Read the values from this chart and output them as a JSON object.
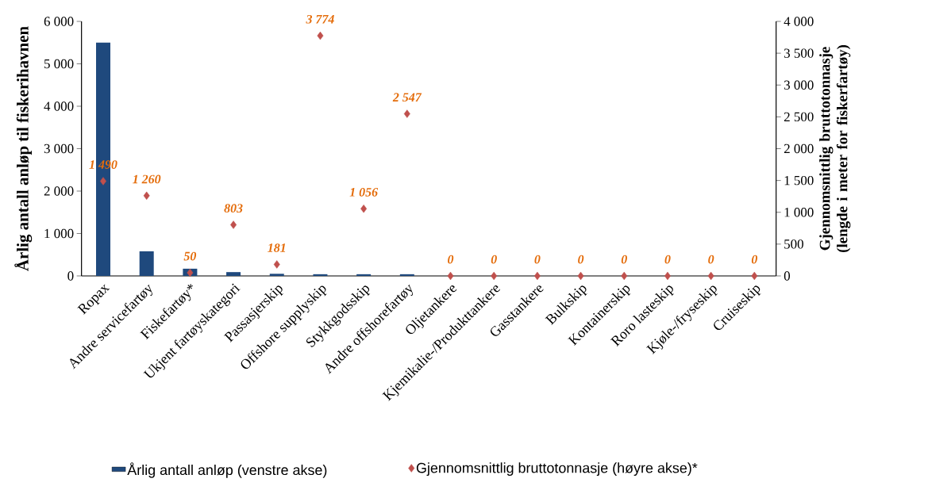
{
  "chart_data": {
    "type": "bar",
    "categories": [
      "Ropax",
      "Andre servicefartøy",
      "Fiskefartøy*",
      "Ukjent fartøyskategori",
      "Passasjerskip",
      "Offshore supplyskip",
      "Stykkgodsskip",
      "Andre offshorefartøy",
      "Oljetankere",
      "Kjemikalie-/Produkttankere",
      "Gasstankere",
      "Bulkskip",
      "Kontainerskip",
      "Roro lasteskip",
      "Kjøle-/fryseskip",
      "Cruiseskip"
    ],
    "series": [
      {
        "name": "Årlig antall anløp (venstre akse)",
        "color": "#1f497d",
        "values": [
          5500,
          580,
          170,
          90,
          50,
          40,
          40,
          40,
          0,
          0,
          0,
          0,
          0,
          0,
          0,
          0
        ]
      },
      {
        "name": "Gjennomsnittlig bruttotonnasje (høyre akse)*",
        "type": "scatter",
        "axis": "y2",
        "color": "#c0504d",
        "marker": "diamond",
        "values": [
          1490,
          1260,
          50,
          803,
          181,
          3774,
          1056,
          2547,
          0,
          0,
          0,
          0,
          0,
          0,
          0,
          0
        ],
        "value_labels": [
          "1 490",
          "1 260",
          "50",
          "803",
          "181",
          "3 774",
          "1 056",
          "2 547",
          "0",
          "0",
          "0",
          "0",
          "0",
          "0",
          "0",
          "0"
        ]
      }
    ],
    "ylabel": "Årlig antall anløp til fiskerihavnen",
    "y2label": "Gjennomsnittlig bruttotonnasje (lengde i meter for fiskerfartøy)",
    "ylim": [
      0,
      6000
    ],
    "yticks": [
      0,
      {
        "value": 1000,
        "label": "1 000"
      },
      {
        "value": 2000,
        "label": "2 000"
      },
      {
        "value": 3000,
        "label": "3 000"
      },
      {
        "value": 4000,
        "label": "4 000"
      },
      {
        "value": 5000,
        "label": "5 000"
      },
      {
        "value": 6000,
        "label": "6 000"
      }
    ],
    "y2lim": [
      0,
      4000
    ],
    "y2ticks": [
      0,
      500,
      {
        "value": 1000,
        "label": "1 000"
      },
      {
        "value": 1500,
        "label": "1 500"
      },
      {
        "value": 2000,
        "label": "2 000"
      },
      {
        "value": 2500,
        "label": "2 500"
      },
      {
        "value": 3000,
        "label": "3 000"
      },
      {
        "value": 3500,
        "label": "3 500"
      },
      {
        "value": 4000,
        "label": "4 000"
      }
    ],
    "grid": false,
    "legend": "bottom"
  }
}
